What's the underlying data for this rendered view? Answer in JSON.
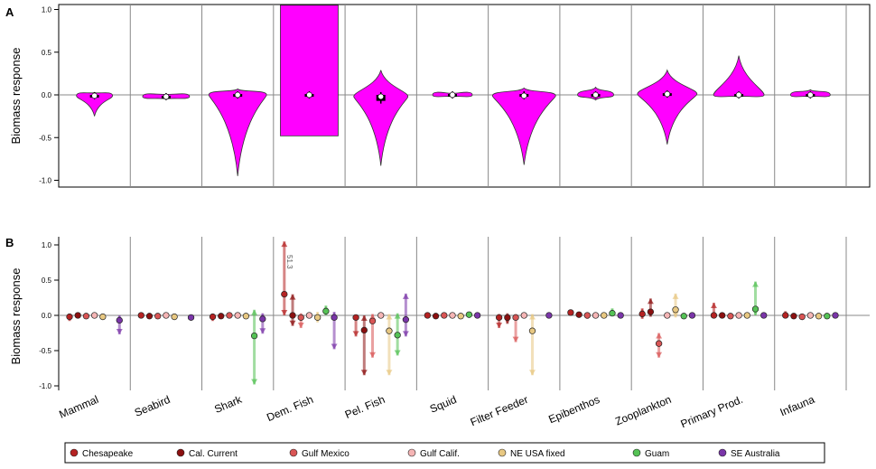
{
  "chart_data": [
    {
      "type": "violin",
      "panel_label": "A",
      "ylabel": "Biomass response",
      "ylim": [
        -1.1,
        1.05
      ],
      "yticks": [
        -1.0,
        -0.5,
        0.0,
        0.5,
        1.0
      ],
      "ytick_labels": [
        "-1.0",
        "-0.5",
        "0.0",
        "0.5",
        "1.0"
      ],
      "fill_color": "#ff00ff",
      "categories": [
        "Mammal",
        "Seabird",
        "Shark",
        "Dem. Fish",
        "Pel. Fish",
        "Squid",
        "Filter Feeder",
        "Epibenthos",
        "Zooplankton",
        "Primary Prod.",
        "Infauna"
      ],
      "series": [
        {
          "name": "Mammal",
          "min": -0.25,
          "max": 0.03,
          "median": -0.01,
          "q1": -0.02,
          "q3": 0.0
        },
        {
          "name": "Seabird",
          "min": -0.05,
          "max": 0.01,
          "median": -0.02,
          "q1": -0.03,
          "q3": -0.01
        },
        {
          "name": "Shark",
          "min": -0.95,
          "max": 0.07,
          "median": 0.0,
          "q1": -0.01,
          "q3": 0.01
        },
        {
          "name": "Dem. Fish",
          "min": -0.48,
          "max": 1.05,
          "median": 0.0,
          "q1": -0.01,
          "q3": 0.01
        },
        {
          "name": "Pel. Fish",
          "min": -0.83,
          "max": 0.29,
          "median": -0.02,
          "q1": -0.07,
          "q3": 0.0
        },
        {
          "name": "Squid",
          "min": -0.02,
          "max": 0.02,
          "median": 0.0,
          "q1": -0.01,
          "q3": 0.01
        },
        {
          "name": "Filter Feeder",
          "min": -0.82,
          "max": 0.08,
          "median": -0.01,
          "q1": -0.02,
          "q3": 0.01
        },
        {
          "name": "Epibenthos",
          "min": -0.06,
          "max": 0.09,
          "median": 0.0,
          "q1": -0.01,
          "q3": 0.01
        },
        {
          "name": "Zooplankton",
          "min": -0.58,
          "max": 0.29,
          "median": 0.01,
          "q1": 0.0,
          "q3": 0.02
        },
        {
          "name": "Primary Prod.",
          "min": -0.02,
          "max": 0.46,
          "median": 0.0,
          "q1": -0.01,
          "q3": 0.01
        },
        {
          "name": "Infauna",
          "min": -0.02,
          "max": 0.06,
          "median": 0.0,
          "q1": -0.01,
          "q3": 0.01
        }
      ]
    },
    {
      "type": "scatter",
      "panel_label": "B",
      "ylabel": "Biomass response",
      "ylim": [
        -1.1,
        1.1
      ],
      "yticks": [
        -1.0,
        -0.5,
        0.0,
        0.5,
        1.0
      ],
      "ytick_labels": [
        "-1.0",
        "-0.5",
        "0.0",
        "0.5",
        "1.0"
      ],
      "categories": [
        "Mammal",
        "Seabird",
        "Shark",
        "Dem. Fish",
        "Pel. Fish",
        "Squid",
        "Filter Feeder",
        "Epibenthos",
        "Zooplankton",
        "Primary Prod.",
        "Infauna"
      ],
      "annotation": "51.3",
      "legend_position": "bottom",
      "series": [
        {
          "name": "Chesapeake",
          "color": "#b52222",
          "values": [
            -0.02,
            0.0,
            -0.02,
            0.3,
            -0.03,
            0.0,
            -0.03,
            0.04,
            0.02,
            0.0,
            0.0
          ],
          "low": [
            -0.08,
            -0.02,
            -0.08,
            0.0,
            -0.3,
            -0.01,
            -0.18,
            0.0,
            -0.05,
            -0.03,
            -0.03
          ],
          "high": [
            0.01,
            0.01,
            0.02,
            1.05,
            0.0,
            0.01,
            0.02,
            0.07,
            0.1,
            0.18,
            0.06
          ]
        },
        {
          "name": "Cal. Current",
          "color": "#8b1010",
          "values": [
            0.0,
            -0.01,
            -0.01,
            0.0,
            -0.21,
            -0.01,
            -0.03,
            0.01,
            0.05,
            0.0,
            -0.01
          ],
          "low": [
            -0.02,
            -0.03,
            -0.05,
            -0.15,
            -0.85,
            -0.02,
            -0.12,
            -0.02,
            -0.02,
            -0.02,
            -0.03
          ],
          "high": [
            0.02,
            0.01,
            0.03,
            0.3,
            0.0,
            0.01,
            0.03,
            0.04,
            0.24,
            0.03,
            0.02
          ]
        },
        {
          "name": "Gulf Mexico",
          "color": "#d95555",
          "values": [
            -0.01,
            -0.01,
            0.0,
            -0.03,
            -0.08,
            0.0,
            -0.03,
            0.0,
            -0.4,
            -0.01,
            -0.02
          ],
          "low": [
            -0.03,
            -0.03,
            -0.02,
            -0.18,
            -0.6,
            -0.01,
            -0.38,
            -0.05,
            -0.6,
            -0.03,
            -0.03
          ],
          "high": [
            0.01,
            0.01,
            0.02,
            0.03,
            0.02,
            0.01,
            0.02,
            0.02,
            -0.25,
            0.02,
            0.01
          ]
        },
        {
          "name": "Gulf Calif.",
          "color": "#f5b5b5",
          "values": [
            0.0,
            0.0,
            0.0,
            0.0,
            0.0,
            0.0,
            0.0,
            0.0,
            0.0,
            0.0,
            0.0
          ],
          "low": [
            -0.01,
            -0.01,
            -0.01,
            -0.02,
            -0.02,
            -0.01,
            -0.01,
            -0.01,
            -0.01,
            -0.01,
            -0.01
          ],
          "high": [
            0.01,
            0.01,
            0.01,
            0.02,
            0.02,
            0.01,
            0.01,
            0.01,
            0.01,
            0.01,
            0.01
          ]
        },
        {
          "name": "NE USA fixed",
          "color": "#e8c882",
          "values": [
            -0.02,
            -0.02,
            -0.01,
            -0.03,
            -0.22,
            -0.01,
            -0.22,
            0.0,
            0.08,
            0.0,
            -0.01
          ],
          "low": [
            -0.06,
            -0.04,
            -0.03,
            -0.1,
            -0.85,
            -0.02,
            -0.85,
            -0.03,
            -0.03,
            -0.02,
            -0.02
          ],
          "high": [
            0.02,
            0.01,
            0.02,
            0.05,
            0.02,
            0.01,
            0.02,
            0.03,
            0.31,
            0.03,
            0.01
          ]
        },
        {
          "name": "Guam",
          "color": "#55c255",
          "values": [
            null,
            null,
            -0.29,
            0.06,
            -0.28,
            0.01,
            null,
            0.03,
            -0.01,
            0.09,
            -0.01
          ],
          "low": [
            null,
            null,
            -0.98,
            0.0,
            -0.57,
            0.0,
            null,
            0.0,
            -0.03,
            0.0,
            -0.02
          ],
          "high": [
            null,
            null,
            0.08,
            0.14,
            0.03,
            0.03,
            null,
            0.1,
            0.01,
            0.48,
            0.01
          ]
        },
        {
          "name": "SE Australia",
          "color": "#7a35a8",
          "values": [
            -0.07,
            -0.03,
            -0.05,
            -0.03,
            -0.06,
            0.0,
            0.0,
            0.0,
            0.0,
            0.0,
            0.0
          ],
          "low": [
            -0.27,
            -0.06,
            -0.26,
            -0.48,
            -0.3,
            -0.01,
            -0.01,
            -0.01,
            -0.01,
            -0.01,
            -0.01
          ],
          "high": [
            0.0,
            0.0,
            0.03,
            0.05,
            0.31,
            0.01,
            0.01,
            0.01,
            0.01,
            0.01,
            0.01
          ]
        }
      ]
    }
  ]
}
